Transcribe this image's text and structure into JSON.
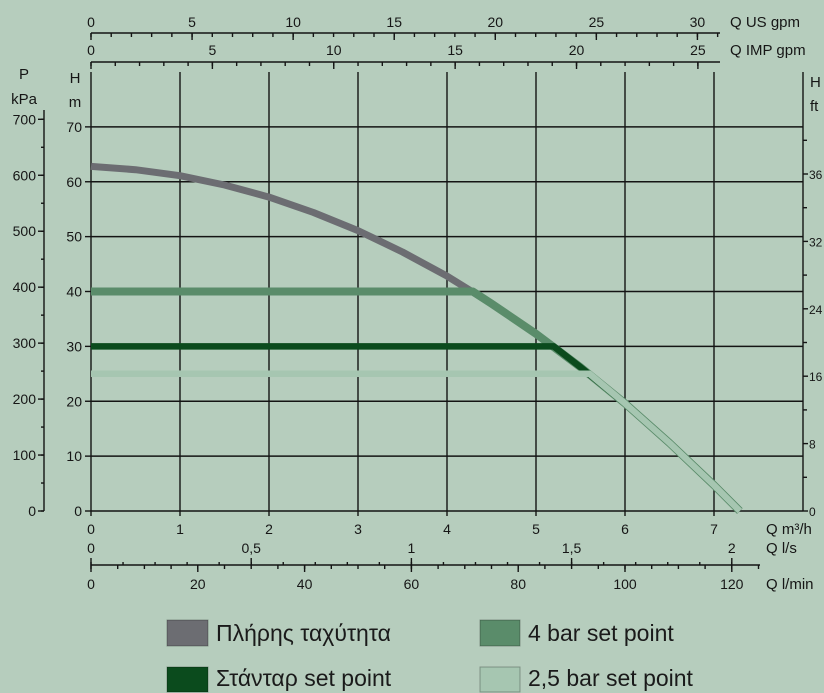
{
  "chart_data": {
    "type": "line",
    "xlim": [
      0,
      8
    ],
    "ylim": [
      0,
      80
    ],
    "grid": true,
    "legend_position": "bottom",
    "axes": {
      "q_m3h": {
        "label": "Q m³/h",
        "ticks": [
          0,
          1,
          2,
          3,
          4,
          5,
          6,
          7
        ],
        "tick_labels": [
          "0",
          "1",
          "2",
          "3",
          "4",
          "5",
          "6",
          "7"
        ]
      },
      "q_ls": {
        "label": "Q l/s",
        "ticks": [
          0,
          0.5,
          1,
          1.5,
          2
        ],
        "tick_labels": [
          "0",
          "0,5",
          "1",
          "1,5",
          "2"
        ]
      },
      "q_lmin": {
        "label": "Q l/min",
        "ticks": [
          0,
          20,
          40,
          60,
          80,
          100,
          120
        ],
        "tick_labels": [
          "0",
          "20",
          "40",
          "60",
          "80",
          "100",
          "120"
        ]
      },
      "q_usgpm": {
        "label": "Q US gpm",
        "ticks": [
          0,
          5,
          10,
          15,
          20,
          25,
          30
        ],
        "tick_labels": [
          "0",
          "5",
          "10",
          "15",
          "20",
          "25",
          "30"
        ]
      },
      "q_impgpm": {
        "label": "Q IMP gpm",
        "ticks": [
          0,
          5,
          10,
          15,
          20,
          25
        ],
        "tick_labels": [
          "0",
          "5",
          "10",
          "15",
          "20",
          "25"
        ]
      },
      "h_m": {
        "label": "H",
        "unit": "m",
        "ticks": [
          0,
          10,
          20,
          30,
          40,
          50,
          60,
          70
        ],
        "tick_labels": [
          "0",
          "10",
          "20",
          "30",
          "40",
          "50",
          "60",
          "70"
        ]
      },
      "p_kpa": {
        "label": "P",
        "unit": "kPa",
        "ticks": [
          0,
          100,
          200,
          300,
          400,
          500,
          600,
          700
        ],
        "tick_labels": [
          "0",
          "100",
          "200",
          "300",
          "400",
          "500",
          "600",
          "700"
        ]
      },
      "h_ft": {
        "label": "H",
        "unit": "ft",
        "tick_labels": [
          "0",
          "8",
          "16",
          "24",
          "32",
          "36"
        ]
      }
    },
    "series": [
      {
        "name": "Πλήρης ταχύτητα",
        "color": "#6c6d72",
        "x": [
          0,
          0.5,
          1,
          1.5,
          2,
          2.5,
          3,
          3.5,
          4,
          4.5,
          5,
          5.5,
          6,
          6.5,
          7,
          7.29
        ],
        "y": [
          62.8,
          62.2,
          61.1,
          59.4,
          57.2,
          54.4,
          51.1,
          47.2,
          42.8,
          37.8,
          32.3,
          26.2,
          19.6,
          12.4,
          4.7,
          0
        ]
      },
      {
        "name": "4 bar set point",
        "color": "#5a8c6a",
        "x": [
          0,
          4.29,
          4.5,
          5,
          5.5,
          6,
          6.5,
          7,
          7.29
        ],
        "y": [
          40,
          40,
          37.8,
          32.3,
          26.2,
          19.6,
          12.4,
          4.7,
          0
        ]
      },
      {
        "name": "Στάνταρ set point",
        "color": "#0b4b1d",
        "x": [
          0,
          5.2,
          5.5,
          6,
          6.5,
          7,
          7.29
        ],
        "y": [
          30,
          30,
          26.2,
          19.6,
          12.4,
          4.7,
          0
        ]
      },
      {
        "name": "2,5 bar set point",
        "color": "#a6c6b1",
        "x": [
          0,
          5.6,
          6,
          6.5,
          7,
          7.29
        ],
        "y": [
          25,
          25,
          19.6,
          12.4,
          4.7,
          0
        ]
      }
    ]
  }
}
